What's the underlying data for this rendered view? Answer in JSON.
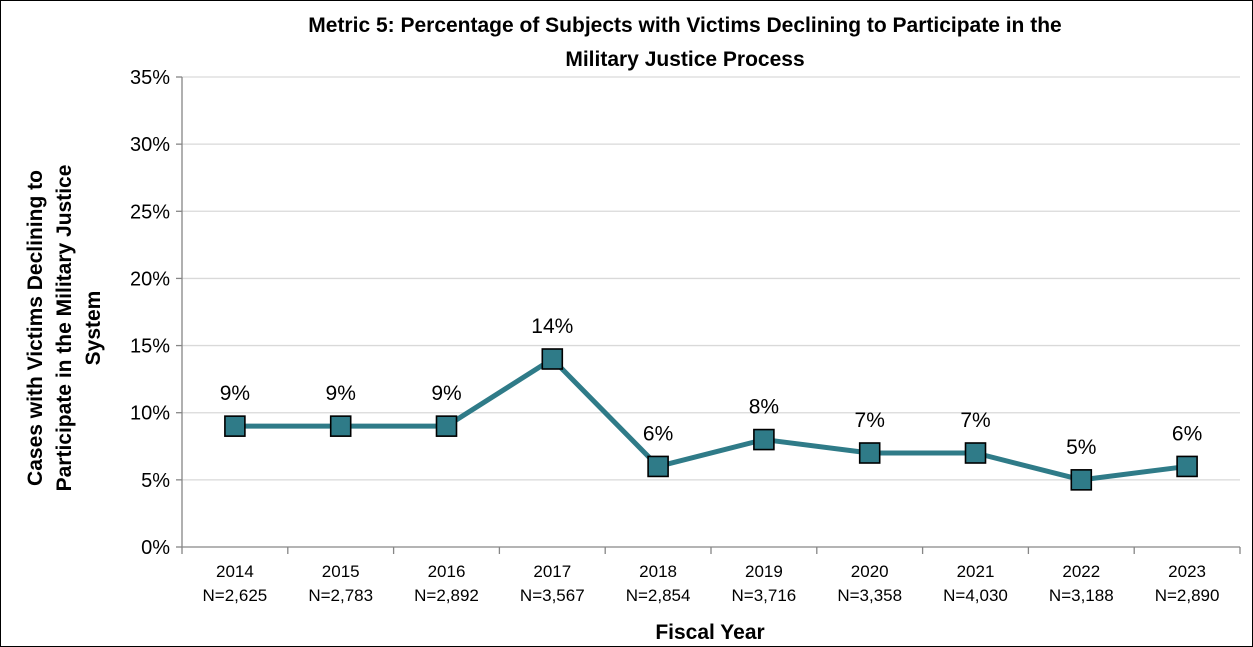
{
  "chart_data": {
    "type": "line",
    "title_lines": [
      "Metric 5: Percentage of Subjects with Victims Declining to Participate in the",
      "Military Justice Process"
    ],
    "xlabel": "Fiscal Year",
    "ylabel_lines": [
      "Cases with Victims Declining to",
      "Participate in the Military Justice",
      "System"
    ],
    "ylim": [
      0,
      35
    ],
    "yticks": [
      0,
      5,
      10,
      15,
      20,
      25,
      30,
      35
    ],
    "ytick_labels": [
      "0%",
      "5%",
      "10%",
      "15%",
      "20%",
      "25%",
      "30%",
      "35%"
    ],
    "categories": [
      "2014",
      "2015",
      "2016",
      "2017",
      "2018",
      "2019",
      "2020",
      "2021",
      "2022",
      "2023"
    ],
    "category_sublabels": [
      "N=2,625",
      "N=2,783",
      "N=2,892",
      "N=3,567",
      "N=2,854",
      "N=3,716",
      "N=3,358",
      "N=4,030",
      "N=3,188",
      "N=2,890"
    ],
    "values": [
      9,
      9,
      9,
      14,
      6,
      8,
      7,
      7,
      5,
      6
    ],
    "data_labels": [
      "9%",
      "9%",
      "9%",
      "14%",
      "6%",
      "8%",
      "7%",
      "7%",
      "5%",
      "6%"
    ],
    "grid": true,
    "legend": "none",
    "colors": {
      "line": "#2F7B88",
      "marker_fill": "#2F7B88",
      "marker_stroke": "#000000",
      "grid": "#D9D9D9"
    }
  }
}
